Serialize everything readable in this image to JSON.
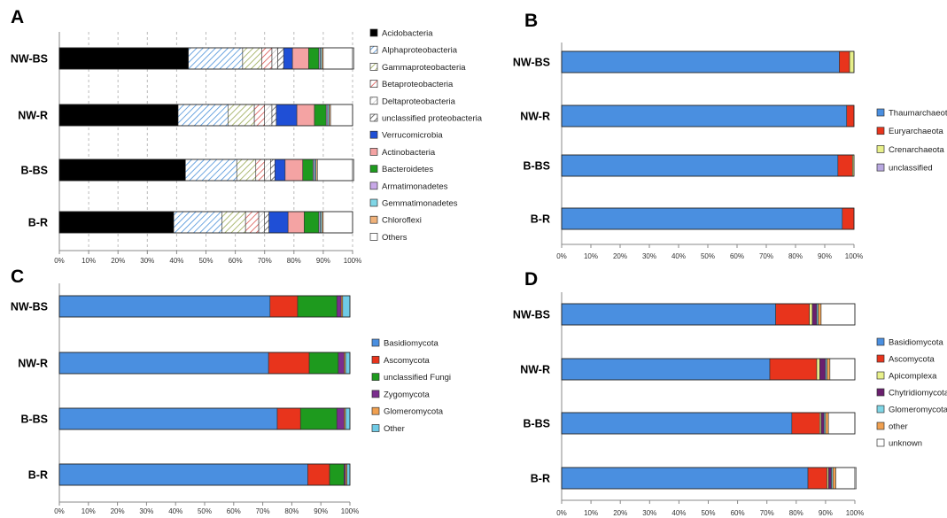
{
  "chart_data": [
    {
      "panel": "A",
      "type": "bar",
      "orientation": "horizontal",
      "stacked": true,
      "categories": [
        "NW-BS",
        "NW-R",
        "B-BS",
        "B-R"
      ],
      "xlim": [
        0,
        100
      ],
      "x_ticks": [
        "0%",
        "10%",
        "20%",
        "30%",
        "40%",
        "50%",
        "60%",
        "70%",
        "80%",
        "90%",
        "100%"
      ],
      "grid": "dashed vertical",
      "legend_position": "right",
      "series": [
        {
          "name": "Acidobacteria",
          "color": "#000000",
          "pattern": "solid",
          "values": [
            44,
            40.5,
            43,
            39
          ]
        },
        {
          "name": "Alphaproteobacteria",
          "color": "#4a90d9",
          "pattern": "hatch",
          "values": [
            18.5,
            17,
            17.5,
            16.5
          ]
        },
        {
          "name": "Gammaproteobacteria",
          "color": "#9aaa55",
          "pattern": "hatch",
          "values": [
            6.5,
            9,
            6.5,
            8
          ]
        },
        {
          "name": "Betaproteobacteria",
          "color": "#d9534f",
          "pattern": "hatch",
          "values": [
            3.5,
            3.5,
            3,
            4.5
          ]
        },
        {
          "name": "Deltaproteobacteria",
          "color": "#aaaaaa",
          "pattern": "hatch-light",
          "values": [
            2,
            2.5,
            2,
            2
          ]
        },
        {
          "name": "unclassified proteobacteria",
          "color": "#555555",
          "pattern": "hatch",
          "values": [
            2,
            1.5,
            1.5,
            1.5
          ]
        },
        {
          "name": "Verrucomicrobia",
          "color": "#1f4fd6",
          "pattern": "solid",
          "values": [
            3,
            7,
            3.5,
            6.5
          ]
        },
        {
          "name": "Actinobacteria",
          "color": "#f4a3a3",
          "pattern": "solid",
          "values": [
            5.5,
            6,
            6,
            5.5
          ]
        },
        {
          "name": "Bacteroidetes",
          "color": "#1e9a1e",
          "pattern": "solid",
          "values": [
            3.5,
            4,
            3.5,
            5
          ]
        },
        {
          "name": "Armatimonadetes",
          "color": "#c8a8e8",
          "pattern": "solid",
          "values": [
            0.5,
            0.5,
            0.5,
            0.5
          ]
        },
        {
          "name": "Gemmatimonadetes",
          "color": "#7fd6e6",
          "pattern": "solid",
          "values": [
            0.5,
            0.5,
            0.5,
            0.5
          ]
        },
        {
          "name": "Chloroflexi",
          "color": "#f0b27a",
          "pattern": "solid",
          "values": [
            0.5,
            0.5,
            0.5,
            0.5
          ]
        },
        {
          "name": "Others",
          "color": "#ffffff",
          "pattern": "solid",
          "values": [
            10.5,
            7.5,
            12.5,
            10
          ]
        }
      ]
    },
    {
      "panel": "B",
      "type": "bar",
      "orientation": "horizontal",
      "stacked": true,
      "categories": [
        "NW-BS",
        "NW-R",
        "B-BS",
        "B-R"
      ],
      "xlim": [
        0,
        100
      ],
      "x_ticks": [
        "0%",
        "10%",
        "20%",
        "30%",
        "40%",
        "50%",
        "60%",
        "70%",
        "80%",
        "90%",
        "100%"
      ],
      "grid": "none",
      "legend_position": "right",
      "series": [
        {
          "name": "Thaumarchaeota",
          "color": "#4a8fe0",
          "pattern": "solid",
          "values": [
            95,
            97.5,
            94.5,
            96
          ]
        },
        {
          "name": "Euryarchaeota",
          "color": "#e8341c",
          "pattern": "solid",
          "values": [
            3.5,
            2.5,
            5,
            4
          ]
        },
        {
          "name": "Crenarchaeota",
          "color": "#e8f08a",
          "pattern": "solid",
          "values": [
            1.5,
            0,
            0.5,
            0
          ]
        },
        {
          "name": "unclassified",
          "color": "#b8a8e0",
          "pattern": "solid",
          "values": [
            0,
            0,
            0,
            0
          ]
        }
      ]
    },
    {
      "panel": "C",
      "type": "bar",
      "orientation": "horizontal",
      "stacked": true,
      "categories": [
        "NW-BS",
        "NW-R",
        "B-BS",
        "B-R"
      ],
      "xlim": [
        0,
        100
      ],
      "x_ticks": [
        "0%",
        "10%",
        "20%",
        "30%",
        "40%",
        "50%",
        "60%",
        "70%",
        "80%",
        "90%",
        "100%"
      ],
      "grid": "none",
      "legend_position": "right",
      "series": [
        {
          "name": "Basidiomycota",
          "color": "#4a8fe0",
          "pattern": "solid",
          "values": [
            72.5,
            72,
            75,
            85.5
          ]
        },
        {
          "name": "Ascomycota",
          "color": "#e8341c",
          "pattern": "solid",
          "values": [
            9.5,
            14,
            8,
            7.5
          ]
        },
        {
          "name": "unclassified Fungi",
          "color": "#1e9a1e",
          "pattern": "solid",
          "values": [
            13.5,
            10,
            12.5,
            5
          ]
        },
        {
          "name": "Zygomycota",
          "color": "#7b2d8e",
          "pattern": "solid",
          "values": [
            1.5,
            2,
            2.5,
            0.5
          ]
        },
        {
          "name": "Glomeromycota",
          "color": "#f0a050",
          "pattern": "solid",
          "values": [
            0.5,
            0.5,
            0.5,
            0.5
          ]
        },
        {
          "name": "Other",
          "color": "#6fcbe6",
          "pattern": "solid",
          "values": [
            2.5,
            1.5,
            1.5,
            1
          ]
        }
      ]
    },
    {
      "panel": "D",
      "type": "bar",
      "orientation": "horizontal",
      "stacked": true,
      "categories": [
        "NW-BS",
        "NW-R",
        "B-BS",
        "B-R"
      ],
      "xlim": [
        0,
        100
      ],
      "x_ticks": [
        "0%",
        "10%",
        "20%",
        "30%",
        "40%",
        "50%",
        "60%",
        "70%",
        "80%",
        "90%",
        "100%"
      ],
      "grid": "none",
      "legend_position": "right",
      "series": [
        {
          "name": "Basidiomycota",
          "color": "#4a8fe0",
          "pattern": "solid",
          "values": [
            73,
            71,
            78.5,
            84
          ]
        },
        {
          "name": "Ascomycota",
          "color": "#e8341c",
          "pattern": "solid",
          "values": [
            11.5,
            16,
            9.5,
            6.5
          ]
        },
        {
          "name": "Apicomplexa",
          "color": "#e8f08a",
          "pattern": "solid",
          "values": [
            1,
            1,
            0.5,
            0.5
          ]
        },
        {
          "name": "Chytridiomycota",
          "color": "#6a1f6e",
          "pattern": "solid",
          "values": [
            1.5,
            2,
            1,
            1
          ]
        },
        {
          "name": "Glomeromycota",
          "color": "#7fd6e6",
          "pattern": "solid",
          "values": [
            0.5,
            0.5,
            0.5,
            0.5
          ]
        },
        {
          "name": "other",
          "color": "#f0a050",
          "pattern": "solid",
          "values": [
            1,
            1,
            1,
            1
          ]
        },
        {
          "name": "unknown",
          "color": "#ffffff",
          "pattern": "solid",
          "values": [
            11.5,
            8.5,
            9,
            7
          ]
        }
      ]
    }
  ]
}
